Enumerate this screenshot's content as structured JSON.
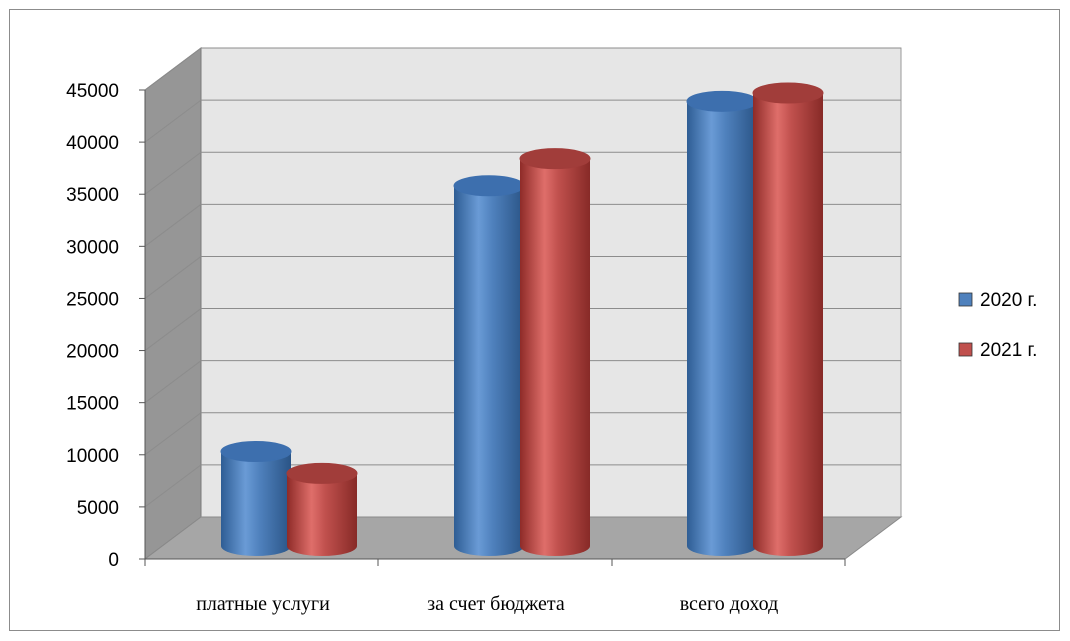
{
  "chart_data": {
    "type": "bar",
    "style": "3d-cylinder",
    "categories": [
      "платные услуги",
      "за счет бюджета",
      "всего доход"
    ],
    "series": [
      {
        "name": "2020 г.",
        "values": [
          8200,
          33700,
          41800
        ],
        "color": "#4f81bd"
      },
      {
        "name": "2021 г.",
        "values": [
          6100,
          36300,
          42600
        ],
        "color": "#c0504d"
      }
    ],
    "yticks": [
      0,
      5000,
      10000,
      15000,
      20000,
      25000,
      30000,
      35000,
      40000,
      45000
    ],
    "ylim": [
      0,
      45000
    ],
    "grid": true,
    "legend_position": "right"
  }
}
